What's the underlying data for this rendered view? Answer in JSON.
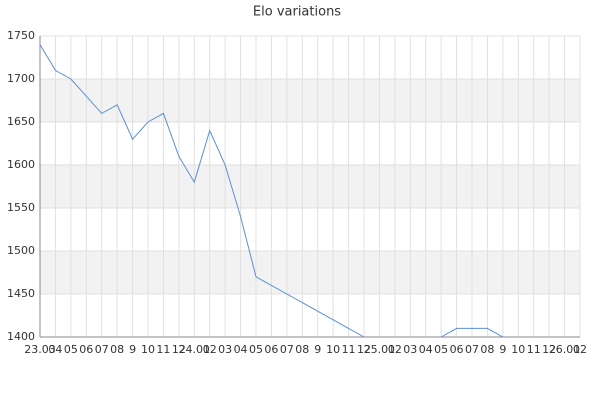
{
  "chart_data": {
    "type": "line",
    "title": "Elo variations",
    "categories": [
      "23.03",
      "04",
      "05",
      "06",
      "07",
      "08",
      "9",
      "10",
      "11",
      "12",
      "24.01",
      "02",
      "03",
      "04",
      "05",
      "06",
      "07",
      "08",
      "9",
      "10",
      "11",
      "12",
      "25.01",
      "02",
      "03",
      "04",
      "05",
      "06",
      "07",
      "08",
      "9",
      "10",
      "11",
      "12",
      "26.01",
      "02"
    ],
    "series": [
      {
        "name": "Elo",
        "color": "#5b8fd6",
        "values": [
          1740,
          1710,
          1700,
          1680,
          1660,
          1670,
          1630,
          1650,
          1660,
          1610,
          1580,
          1640,
          1600,
          1540,
          1470,
          1460,
          1450,
          1440,
          1430,
          1420,
          1410,
          1400,
          null,
          null,
          null,
          null,
          1400,
          1410,
          1410,
          1410,
          1400,
          null,
          null,
          null,
          null,
          null
        ]
      }
    ],
    "ylim": [
      1400,
      1750
    ],
    "yticks": [
      1400,
      1450,
      1500,
      1550,
      1600,
      1650,
      1700,
      1750
    ],
    "grid": true
  }
}
